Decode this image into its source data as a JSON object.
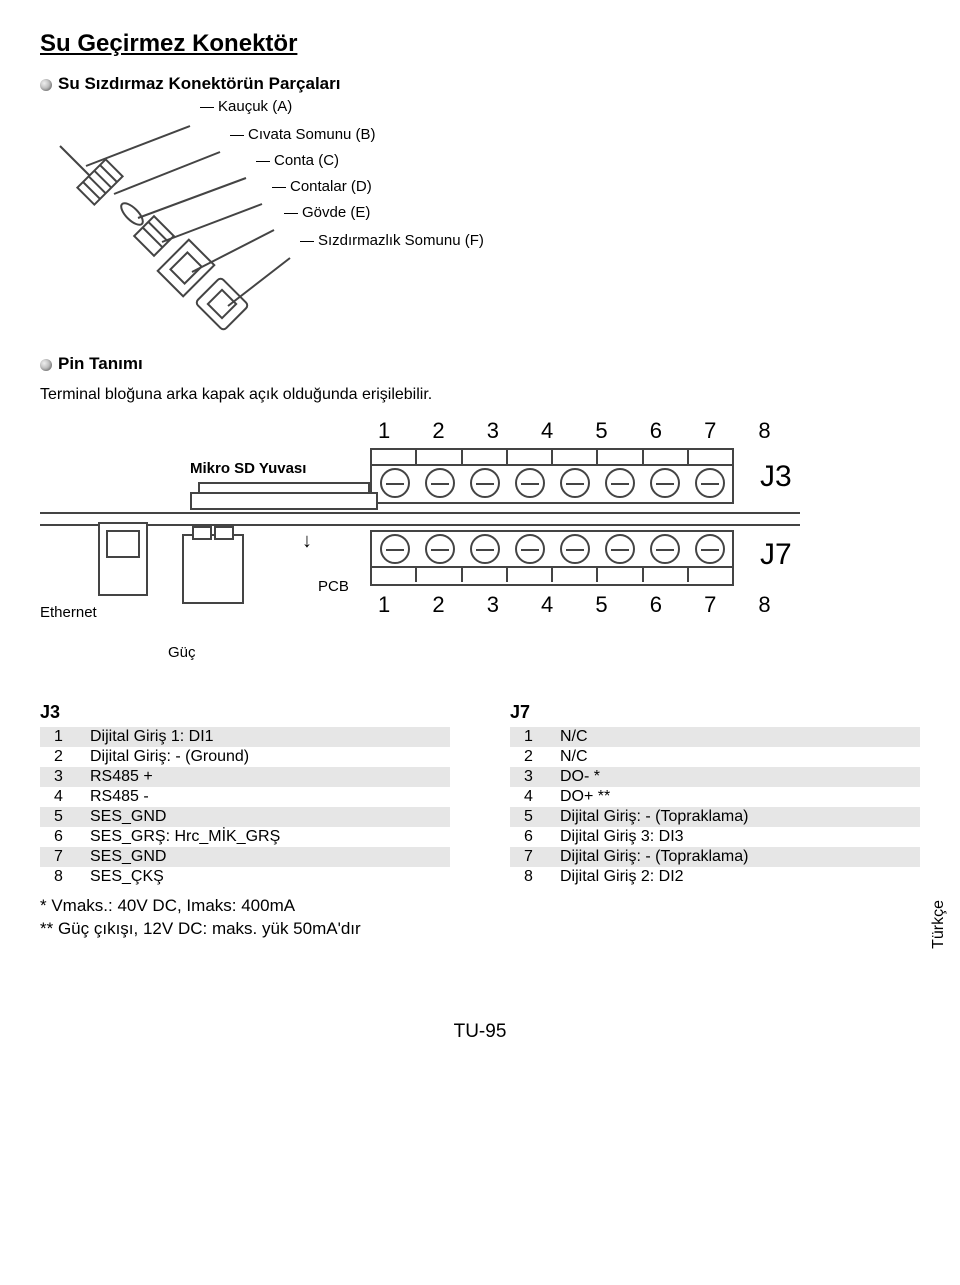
{
  "title": "Su Geçirmez Konektör",
  "section_parts": "Su Sızdırmaz Konektörün Parçaları",
  "parts": {
    "a": "Kauçuk (A)",
    "b": "Cıvata Somunu (B)",
    "c": "Conta (C)",
    "d": "Contalar (D)",
    "e": "Gövde (E)",
    "f": "Sızdırmazlık Somunu (F)"
  },
  "section_pin": "Pin Tanımı",
  "pin_note": "Terminal bloğuna arka kapak açık olduğunda erişilebilir.",
  "diagram": {
    "pins_top": "1 2 3 4 5 6 7 8",
    "pins_bottom": "1 2 3 4 5 6 7 8",
    "sd_label": "Mikro SD Yuvası",
    "pcb_label": "PCB",
    "ethernet_label": "Ethernet",
    "power_label": "Güç",
    "j3_label": "J3",
    "j7_label": "J7"
  },
  "table_j3": {
    "header": "J3",
    "rows": [
      {
        "n": "1",
        "d": "Dijital Giriş 1: DI1"
      },
      {
        "n": "2",
        "d": "Dijital Giriş: - (Ground)"
      },
      {
        "n": "3",
        "d": "RS485 +"
      },
      {
        "n": "4",
        "d": "RS485 -"
      },
      {
        "n": "5",
        "d": "SES_GND"
      },
      {
        "n": "6",
        "d": "SES_GRŞ: Hrc_MİK_GRŞ"
      },
      {
        "n": "7",
        "d": "SES_GND"
      },
      {
        "n": "8",
        "d": "SES_ÇKŞ"
      }
    ]
  },
  "table_j7": {
    "header": "J7",
    "rows": [
      {
        "n": "1",
        "d": "N/C"
      },
      {
        "n": "2",
        "d": "N/C"
      },
      {
        "n": "3",
        "d": "DO- *"
      },
      {
        "n": "4",
        "d": "DO+ **"
      },
      {
        "n": "5",
        "d": "Dijital Giriş: - (Topraklama)"
      },
      {
        "n": "6",
        "d": "Dijital Giriş 3: DI3"
      },
      {
        "n": "7",
        "d": "Dijital Giriş: - (Topraklama)"
      },
      {
        "n": "8",
        "d": "Dijital Giriş 2: DI2"
      }
    ]
  },
  "footnote1": "* Vmaks.: 40V DC, Imaks: 400mA",
  "footnote2": "** Güç çıkışı, 12V DC: maks. yük 50mA'dır",
  "language_tab": "Türkçe",
  "page_number": "TU-95",
  "colors": {
    "stroke": "#444444",
    "zebra": "#e6e6e6",
    "background": "#ffffff"
  }
}
